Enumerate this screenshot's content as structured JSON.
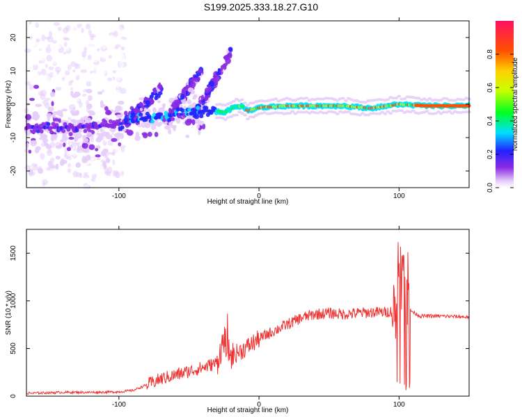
{
  "title": "S199.2025.333.18.27.G10",
  "chart_data": [
    {
      "type": "heatmap",
      "xlabel": "Height of straight line (km)",
      "ylabel": "Frequency (Hz)",
      "xlim": [
        -166,
        150
      ],
      "ylim": [
        -25,
        25
      ],
      "xticks": [
        -100,
        0,
        100
      ],
      "yticks": [
        -20,
        -10,
        0,
        10,
        20
      ],
      "colorbar": {
        "label": "Normalized spectral amplitude",
        "range": [
          0,
          1
        ],
        "ticks": [
          0.0,
          0.2,
          0.4,
          0.6,
          0.8
        ],
        "tick_labels": [
          "0.0",
          "0.2",
          "0.4",
          "0.6",
          "0.8"
        ]
      },
      "ridge": [
        {
          "h": -166,
          "f": -7
        },
        {
          "h": -130,
          "f": -7
        },
        {
          "h": -100,
          "f": -6
        },
        {
          "h": -90,
          "f": -5
        },
        {
          "h": -80,
          "f": -4
        },
        {
          "h": -70,
          "f": -4
        },
        {
          "h": -60,
          "f": -3
        },
        {
          "h": -50,
          "f": -3
        },
        {
          "h": -40,
          "f": -2
        },
        {
          "h": -30,
          "f": -2
        },
        {
          "h": -25,
          "f": -2.5
        },
        {
          "h": -18,
          "f": -1
        },
        {
          "h": -12,
          "f": -0.5
        },
        {
          "h": -8,
          "f": -2
        },
        {
          "h": 0,
          "f": -1
        },
        {
          "h": 20,
          "f": -0.5
        },
        {
          "h": 40,
          "f": -0.5
        },
        {
          "h": 60,
          "f": -0.5
        },
        {
          "h": 80,
          "f": -1.2
        },
        {
          "h": 100,
          "f": 0
        },
        {
          "h": 120,
          "f": -0.5
        },
        {
          "h": 150,
          "f": -0.5
        }
      ]
    },
    {
      "type": "line",
      "xlabel": "Height of straight line (km)",
      "ylabel": "SNR (10 * v/v)",
      "xlim": [
        -166,
        150
      ],
      "ylim": [
        0,
        1750
      ],
      "xticks": [
        -100,
        0,
        100
      ],
      "yticks": [
        0,
        500,
        1000,
        1500
      ],
      "color": "#f03232",
      "series": [
        {
          "name": "SNR",
          "x": [
            -166,
            -140,
            -120,
            -100,
            -90,
            -80,
            -70,
            -60,
            -50,
            -40,
            -30,
            -25,
            -20,
            -10,
            0,
            10,
            20,
            30,
            40,
            50,
            60,
            70,
            80,
            90,
            98,
            100,
            104,
            108,
            115,
            130,
            150
          ],
          "values": [
            30,
            40,
            40,
            45,
            60,
            120,
            180,
            220,
            260,
            300,
            350,
            600,
            420,
            500,
            600,
            680,
            750,
            820,
            860,
            870,
            860,
            870,
            880,
            880,
            900,
            1100,
            1300,
            900,
            840,
            840,
            830
          ]
        }
      ]
    }
  ]
}
